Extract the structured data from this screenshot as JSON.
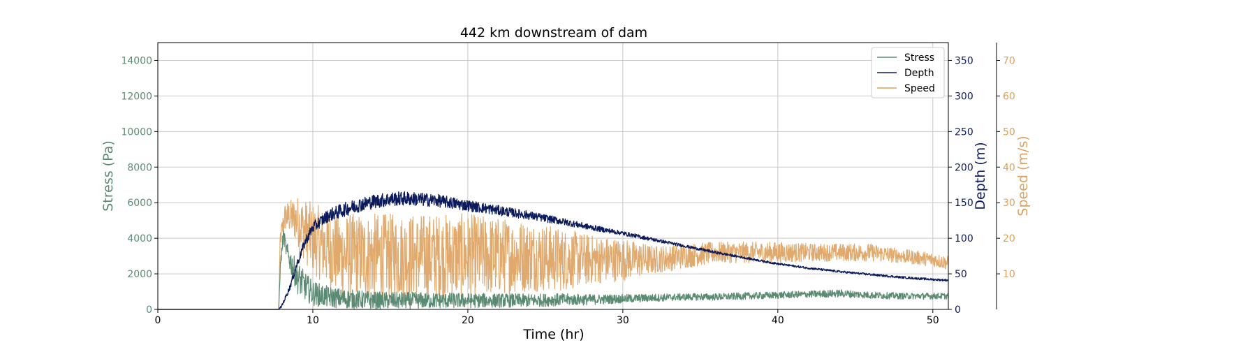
{
  "chart_data": {
    "type": "line",
    "title": "442 km downstream of dam",
    "xlabel": "Time (hr)",
    "xlim": [
      0,
      51
    ],
    "xticks": [
      0,
      10,
      20,
      30,
      40,
      50
    ],
    "grid": true,
    "legend_position": "top-right",
    "axes": [
      {
        "id": "stress",
        "label": "Stress (Pa)",
        "color": "#5b8a72",
        "ylim": [
          0,
          15000
        ],
        "ticks": [
          0,
          2000,
          4000,
          6000,
          8000,
          10000,
          12000,
          14000
        ],
        "side": "left"
      },
      {
        "id": "depth",
        "label": "Depth (m)",
        "color": "#0b1a5a",
        "ylim": [
          0,
          375
        ],
        "ticks": [
          0,
          50,
          100,
          150,
          200,
          250,
          300,
          350
        ],
        "side": "right"
      },
      {
        "id": "speed",
        "label": "Speed (m/s)",
        "color": "#dda15e",
        "ylim": [
          0,
          75
        ],
        "ticks": [
          10,
          20,
          30,
          40,
          50,
          60,
          70
        ],
        "side": "right-outer"
      }
    ],
    "series": [
      {
        "name": "Stress",
        "axis": "stress",
        "color": "#5b8a72",
        "x": [
          0,
          7.8,
          7.9,
          8.1,
          8.3,
          8.6,
          9,
          9.5,
          10,
          11,
          12,
          14,
          16,
          18,
          20,
          22,
          24,
          26,
          28,
          30,
          32,
          34,
          36,
          38,
          40,
          42,
          44,
          46,
          48,
          50,
          51
        ],
        "y": [
          0,
          0,
          2400,
          4200,
          3300,
          2600,
          1800,
          1300,
          900,
          700,
          600,
          500,
          500,
          500,
          500,
          500,
          500,
          550,
          550,
          600,
          650,
          700,
          700,
          750,
          800,
          850,
          900,
          800,
          750,
          750,
          750
        ],
        "noise": [
          0,
          0,
          300,
          400,
          500,
          700,
          900,
          800,
          700,
          600,
          550,
          500,
          480,
          450,
          420,
          400,
          380,
          350,
          300,
          250,
          220,
          200,
          200,
          200,
          200,
          200,
          220,
          200,
          180,
          180,
          180
        ]
      },
      {
        "name": "Depth",
        "axis": "depth",
        "color": "#0b1a5a",
        "x": [
          0,
          7.8,
          8,
          8.5,
          9,
          9.5,
          10,
          11,
          12,
          13,
          14,
          15,
          16,
          18,
          20,
          22,
          24,
          26,
          28,
          30,
          32,
          34,
          36,
          38,
          40,
          42,
          44,
          46,
          48,
          50,
          51
        ],
        "y": [
          0,
          0,
          5,
          30,
          65,
          95,
          115,
          132,
          140,
          147,
          152,
          155,
          156,
          153,
          146,
          139,
          132,
          124,
          115,
          107,
          98,
          89,
          80,
          72,
          64,
          58,
          53,
          49,
          45,
          42,
          41
        ],
        "noise": [
          0,
          0,
          2,
          4,
          6,
          7,
          8,
          9,
          10,
          10,
          10,
          10,
          10,
          9,
          8,
          7,
          6,
          5,
          4,
          3,
          2.5,
          2,
          2,
          1.5,
          1.5,
          1.5,
          1.5,
          1.5,
          1.5,
          1.5,
          1.5
        ]
      },
      {
        "name": "Speed",
        "axis": "speed",
        "color": "#dda15e",
        "x": [
          0,
          7.8,
          7.9,
          8.2,
          8.6,
          9,
          9.5,
          10,
          11,
          12,
          14,
          16,
          18,
          20,
          22,
          24,
          26,
          28,
          30,
          32,
          34,
          36,
          38,
          40,
          42,
          44,
          46,
          48,
          50,
          51
        ],
        "y": [
          0,
          0,
          20,
          26,
          26,
          25,
          22,
          20,
          17,
          15,
          15,
          15,
          15,
          15,
          15,
          15,
          14,
          14,
          14,
          14,
          15,
          16,
          16,
          16,
          16,
          16,
          16,
          15,
          14,
          13
        ],
        "noise": [
          0,
          0,
          3,
          4,
          5,
          7,
          9,
          10,
          11,
          12,
          12,
          12,
          12,
          12,
          11,
          10,
          9,
          7,
          6,
          4,
          3.5,
          3,
          3,
          3,
          2.5,
          2.5,
          2.5,
          2,
          2,
          2
        ]
      }
    ]
  }
}
